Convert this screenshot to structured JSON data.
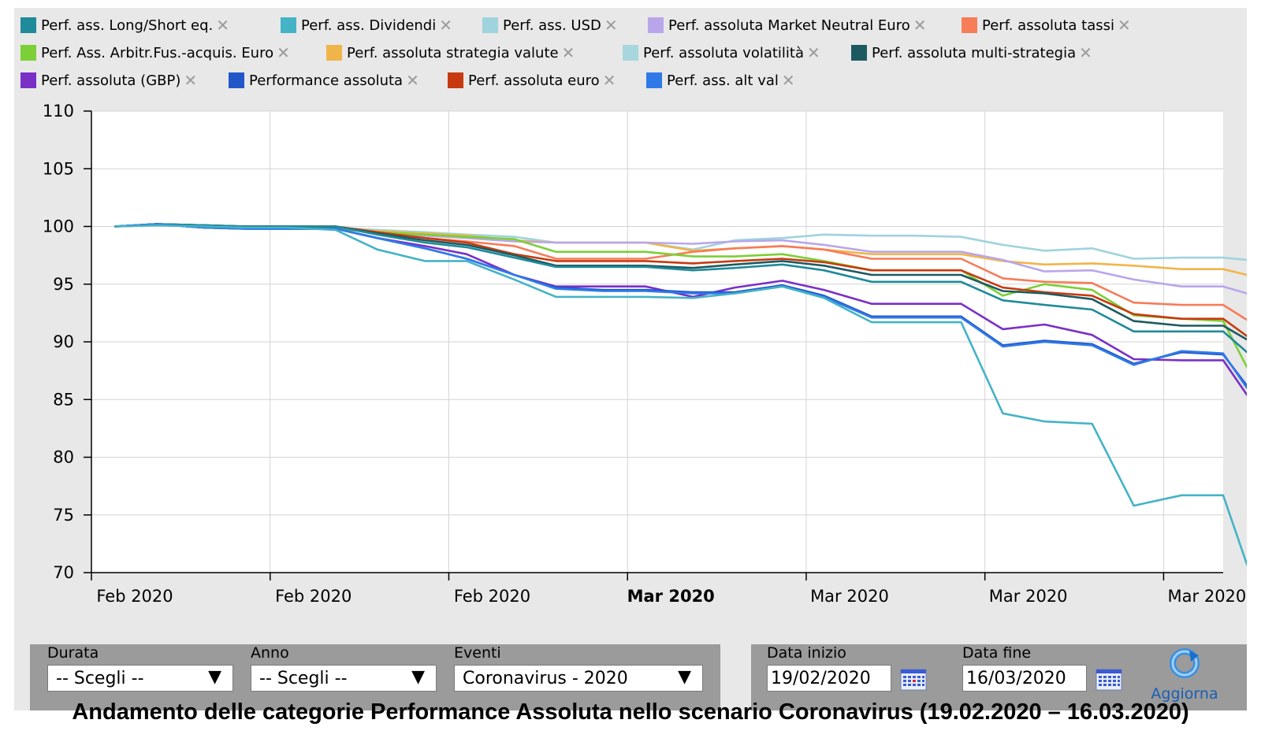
{
  "legend": [
    {
      "label": "Perf. ass. Long/Short eq.",
      "color": "#1f8a99"
    },
    {
      "label": "Perf. ass. Dividendi",
      "color": "#44b3c6"
    },
    {
      "label": "Perf. ass. USD",
      "color": "#9fd3dd"
    },
    {
      "label": "Perf. assoluta Market Neutral Euro",
      "color": "#b9a6ea"
    },
    {
      "label": "Perf. assoluta tassi",
      "color": "#f77c58"
    },
    {
      "label": "Perf. Ass. Arbitr.Fus.-acquis. Euro",
      "color": "#7ccf36"
    },
    {
      "label": "Perf. assoluta strategia valute",
      "color": "#f0b54a"
    },
    {
      "label": "Perf. assoluta volatilità",
      "color": "#a8d6de"
    },
    {
      "label": "Perf. assoluta multi-strategia",
      "color": "#1d5a60"
    },
    {
      "label": "Perf. assoluta (GBP)",
      "color": "#7a2fc7"
    },
    {
      "label": "Performance assoluta",
      "color": "#2357c9"
    },
    {
      "label": "Perf. assoluta euro",
      "color": "#c73a10"
    },
    {
      "label": "Perf. ass. alt val",
      "color": "#2f7ae8"
    }
  ],
  "chart_data": {
    "type": "line",
    "ylim": [
      70,
      110
    ],
    "yticks": [
      70,
      75,
      80,
      85,
      90,
      95,
      100,
      105,
      110
    ],
    "xlim": [
      0,
      19
    ],
    "x_tick_labels": [
      {
        "x": 0,
        "label": "Feb 2020",
        "bold": false
      },
      {
        "x": 3,
        "label": "Feb 2020",
        "bold": false
      },
      {
        "x": 6,
        "label": "Feb 2020",
        "bold": false
      },
      {
        "x": 9,
        "label": "Mar 2020",
        "bold": true
      },
      {
        "x": 12,
        "label": "Mar 2020",
        "bold": false
      },
      {
        "x": 15,
        "label": "Mar 2020",
        "bold": false
      },
      {
        "x": 18,
        "label": "Mar 2020",
        "bold": false
      }
    ],
    "x": [
      0.4,
      1.1,
      1.9,
      2.6,
      3.3,
      4.1,
      4.8,
      5.6,
      6.3,
      7.1,
      7.8,
      8.6,
      9.3,
      10.1,
      10.8,
      11.6,
      12.3,
      13.1,
      13.8,
      14.6,
      15.3,
      16.0,
      16.8,
      17.5,
      18.3,
      19.0,
      19.4
    ],
    "series": [
      {
        "name": "Perf. ass. USD",
        "color": "#9fd3dd",
        "values": [
          100.0,
          100.2,
          100.1,
          100.0,
          100.0,
          99.9,
          99.7,
          99.5,
          99.3,
          99.1,
          98.6,
          98.6,
          98.6,
          98.0,
          98.8,
          99.0,
          99.3,
          99.2,
          99.2,
          99.1,
          98.4,
          97.9,
          98.1,
          97.2,
          97.3,
          97.3,
          97.1
        ]
      },
      {
        "name": "Perf. assoluta strategia valute",
        "color": "#f0b54a",
        "values": [
          100.0,
          100.1,
          100.0,
          100.0,
          100.0,
          99.9,
          99.6,
          99.4,
          99.2,
          98.8,
          98.6,
          98.6,
          98.6,
          97.9,
          98.1,
          98.3,
          98.0,
          97.6,
          97.6,
          97.6,
          97.0,
          96.7,
          96.8,
          96.6,
          96.3,
          96.3,
          95.8
        ]
      },
      {
        "name": "Perf. assoluta Market Neutral Euro",
        "color": "#b9a6ea",
        "values": [
          100.0,
          100.1,
          100.0,
          99.9,
          99.9,
          99.8,
          99.5,
          99.2,
          99.0,
          98.7,
          98.6,
          98.6,
          98.6,
          98.5,
          98.7,
          98.8,
          98.4,
          97.8,
          97.8,
          97.8,
          97.1,
          96.1,
          96.2,
          95.4,
          94.8,
          94.8,
          94.2
        ]
      },
      {
        "name": "Perf. assoluta tassi",
        "color": "#f77c58",
        "values": [
          100.0,
          100.1,
          100.0,
          100.0,
          100.0,
          99.9,
          99.5,
          99.0,
          98.7,
          98.3,
          97.2,
          97.2,
          97.2,
          97.8,
          98.1,
          98.3,
          98.0,
          97.2,
          97.2,
          97.2,
          95.5,
          95.2,
          95.1,
          93.4,
          93.2,
          93.2,
          91.9
        ]
      },
      {
        "name": "Perf. Ass. Arbitr.Fus.-acquis. Euro",
        "color": "#7ccf36",
        "values": [
          100.0,
          100.1,
          100.0,
          99.9,
          99.9,
          99.8,
          99.5,
          99.3,
          99.1,
          98.9,
          97.8,
          97.8,
          97.8,
          97.4,
          97.4,
          97.6,
          97.0,
          96.2,
          96.2,
          96.2,
          94.0,
          95.0,
          94.5,
          92.3,
          92.0,
          91.8,
          87.8
        ]
      },
      {
        "name": "Perf. assoluta euro",
        "color": "#c73a10",
        "values": [
          100.0,
          100.2,
          100.1,
          100.0,
          100.0,
          100.0,
          99.5,
          99.0,
          98.6,
          97.6,
          97.0,
          97.0,
          97.0,
          96.8,
          97.0,
          97.2,
          96.9,
          96.2,
          96.2,
          96.2,
          94.7,
          94.3,
          94.0,
          92.4,
          92.0,
          92.0,
          90.5
        ]
      },
      {
        "name": "Perf. assoluta multi-strategia",
        "color": "#1d5a60",
        "values": [
          100.0,
          100.2,
          100.1,
          100.0,
          100.0,
          100.0,
          99.4,
          98.8,
          98.4,
          97.5,
          96.6,
          96.6,
          96.6,
          96.4,
          96.7,
          97.0,
          96.6,
          95.8,
          95.8,
          95.8,
          94.4,
          94.2,
          93.7,
          91.8,
          91.4,
          91.4,
          90.2
        ]
      },
      {
        "name": "Perf. ass. Long/Short eq.",
        "color": "#1f8a99",
        "values": [
          100.0,
          100.2,
          100.1,
          100.0,
          100.0,
          100.0,
          99.3,
          98.6,
          98.2,
          97.3,
          96.5,
          96.5,
          96.5,
          96.2,
          96.4,
          96.7,
          96.2,
          95.2,
          95.2,
          95.2,
          93.6,
          93.2,
          92.8,
          90.9,
          90.9,
          90.9,
          89.1
        ]
      },
      {
        "name": "Perf. assoluta (GBP)",
        "color": "#7a2fc7",
        "values": [
          100.0,
          100.2,
          99.9,
          99.8,
          99.8,
          99.8,
          99.0,
          98.3,
          97.6,
          95.8,
          94.8,
          94.8,
          94.8,
          93.9,
          94.7,
          95.3,
          94.5,
          93.3,
          93.3,
          93.3,
          91.1,
          91.5,
          90.6,
          88.5,
          88.4,
          88.4,
          85.4
        ]
      },
      {
        "name": "Performance assoluta",
        "color": "#2357c9",
        "values": [
          100.0,
          100.2,
          99.9,
          99.8,
          99.8,
          99.8,
          99.0,
          98.1,
          97.2,
          95.8,
          94.7,
          94.5,
          94.5,
          94.3,
          94.3,
          94.9,
          94.0,
          92.2,
          92.2,
          92.2,
          89.7,
          90.1,
          89.8,
          88.1,
          89.1,
          88.9,
          86.2
        ]
      },
      {
        "name": "Perf. ass. alt val",
        "color": "#2f7ae8",
        "values": [
          100.0,
          100.2,
          99.9,
          99.8,
          99.8,
          99.8,
          99.0,
          98.1,
          97.2,
          95.8,
          94.6,
          94.4,
          94.4,
          94.2,
          94.2,
          94.8,
          93.9,
          92.1,
          92.1,
          92.1,
          89.6,
          90.0,
          89.7,
          88.0,
          89.2,
          89.0,
          86.0
        ]
      },
      {
        "name": "Perf. ass. Dividendi",
        "color": "#44b3c6",
        "values": [
          100.0,
          100.1,
          100.0,
          99.9,
          99.9,
          99.7,
          98.0,
          97.0,
          97.0,
          95.4,
          93.9,
          93.9,
          93.9,
          93.8,
          94.2,
          94.8,
          93.8,
          91.7,
          91.7,
          91.7,
          83.8,
          83.1,
          82.9,
          75.8,
          76.7,
          76.7,
          70.7
        ]
      }
    ]
  },
  "controls": {
    "durata_label": "Durata",
    "durata_value": "-- Scegli --",
    "anno_label": "Anno",
    "anno_value": "-- Scegli --",
    "eventi_label": "Eventi",
    "eventi_value": "Coronavirus - 2020",
    "data_inizio_label": "Data inizio",
    "data_inizio_value": "19/02/2020",
    "data_fine_label": "Data fine",
    "data_fine_value": "16/03/2020",
    "refresh_label": "Aggiorna"
  },
  "caption": "Andamento delle categorie Performance Assoluta nello scenario Coronavirus (19.02.2020 – 16.03.2020)"
}
